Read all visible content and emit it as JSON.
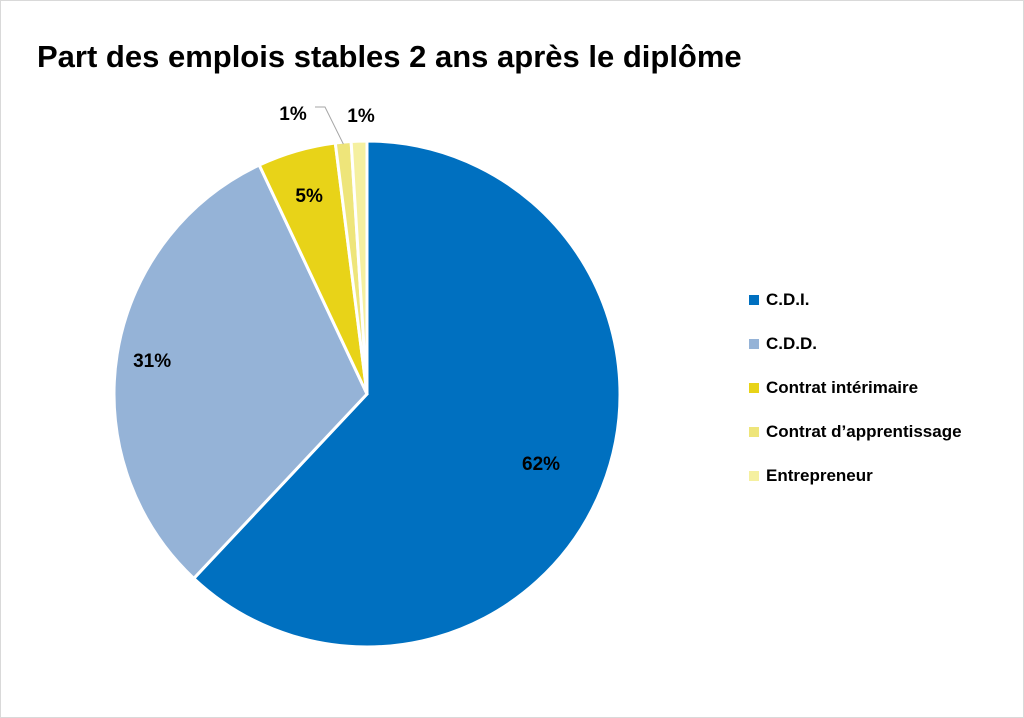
{
  "chart_data": {
    "type": "pie",
    "title": "Part des emplois stables 2 ans après le diplôme",
    "categories": [
      "C.D.I.",
      "C.D.D.",
      "Contrat intérimaire",
      "Contrat d’apprentissage",
      "Entrepreneur"
    ],
    "values": [
      62,
      31,
      5,
      1,
      1
    ],
    "data_labels": [
      "62%",
      "31%",
      "5%",
      "1%",
      "1%"
    ],
    "colors": [
      "#0070C0",
      "#95B3D7",
      "#E8D318",
      "#EEE57A",
      "#F5F0A0"
    ],
    "legend_position": "right",
    "start_angle": "top",
    "direction": "clockwise"
  }
}
